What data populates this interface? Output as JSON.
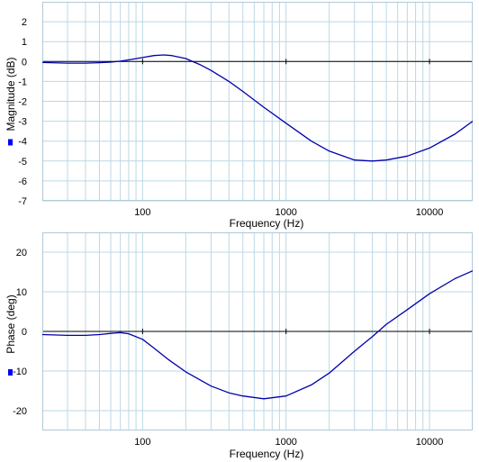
{
  "chart_data": [
    {
      "type": "line",
      "xscale": "log",
      "xlim": [
        20,
        20000
      ],
      "ylim": [
        -7,
        3
      ],
      "xticks": [
        100,
        1000,
        10000
      ],
      "xtick_labels": [
        "100",
        "1000",
        "10000"
      ],
      "yticks": [
        -7,
        -6,
        -5,
        -4,
        -3,
        -2,
        -1,
        0,
        1,
        2
      ],
      "ytick_labels": [
        "-7",
        "-6",
        "-5",
        "-4",
        "-3",
        "-2",
        "-1",
        "0",
        "1",
        "2"
      ],
      "xlabel": "Frequency (Hz)",
      "ylabel": "Magnitude (dB)",
      "grid": true,
      "colors": {
        "line": "#0000aa",
        "grid": "#bcd7e6",
        "zero_line": "#000000",
        "legend_marker": "#0000ff"
      },
      "series": [
        {
          "x": [
            20,
            30,
            40,
            50,
            60,
            70,
            80,
            100,
            120,
            140,
            160,
            200,
            250,
            300,
            400,
            500,
            700,
            1000,
            1500,
            2000,
            3000,
            4000,
            5000,
            7000,
            10000,
            15000,
            20000
          ],
          "values": [
            -0.05,
            -0.08,
            -0.08,
            -0.06,
            -0.03,
            0.02,
            0.08,
            0.2,
            0.3,
            0.33,
            0.3,
            0.15,
            -0.15,
            -0.45,
            -1.0,
            -1.5,
            -2.3,
            -3.1,
            -4.0,
            -4.5,
            -4.95,
            -5.0,
            -4.95,
            -4.75,
            -4.35,
            -3.65,
            -3.0
          ]
        }
      ]
    },
    {
      "type": "line",
      "xscale": "log",
      "xlim": [
        20,
        20000
      ],
      "ylim": [
        -25,
        25
      ],
      "xticks": [
        100,
        1000,
        10000
      ],
      "xtick_labels": [
        "100",
        "1000",
        "10000"
      ],
      "yticks": [
        -20,
        -10,
        0,
        10,
        20
      ],
      "ytick_labels": [
        "-20",
        "-10",
        "0",
        "10",
        "20"
      ],
      "xlabel": "Frequency (Hz)",
      "ylabel": "Phase (deg)",
      "grid": true,
      "colors": {
        "line": "#0000aa",
        "grid": "#bcd7e6",
        "zero_line": "#000000",
        "legend_marker": "#0000ff"
      },
      "series": [
        {
          "x": [
            20,
            30,
            40,
            50,
            60,
            70,
            80,
            100,
            120,
            150,
            200,
            300,
            400,
            500,
            700,
            1000,
            1500,
            2000,
            3000,
            4000,
            5000,
            7000,
            10000,
            15000,
            20000
          ],
          "values": [
            -0.8,
            -1.0,
            -1.0,
            -0.8,
            -0.5,
            -0.3,
            -0.6,
            -2.0,
            -4.2,
            -7.0,
            -10.2,
            -13.8,
            -15.5,
            -16.3,
            -17.0,
            -16.3,
            -13.5,
            -10.5,
            -5.0,
            -1.3,
            1.8,
            5.5,
            9.5,
            13.3,
            15.3
          ]
        }
      ]
    }
  ]
}
